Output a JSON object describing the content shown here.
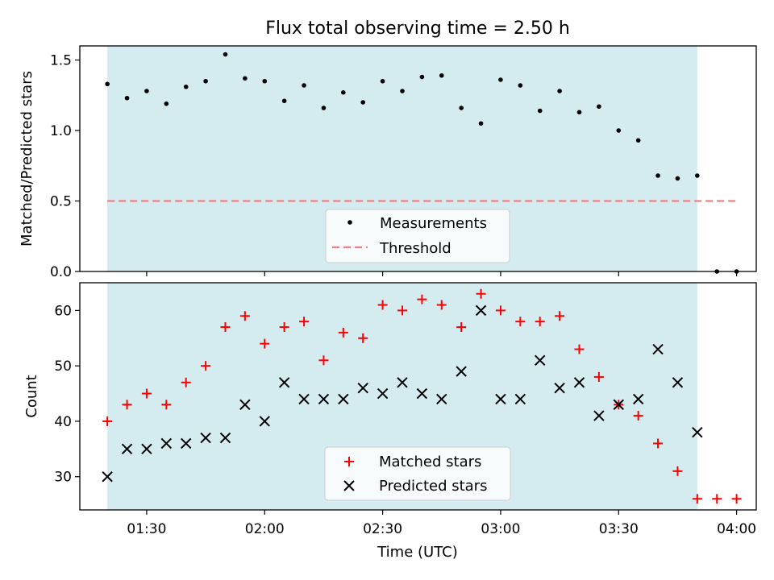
{
  "title": "Flux total observing time = 2.50 h",
  "chart_data": [
    {
      "type": "scatter",
      "ylabel": "Matched/Predicted stars",
      "xlabel": "",
      "ylim": [
        0,
        1.6
      ],
      "yticks": [
        0,
        0.5,
        1.0,
        1.5
      ],
      "ytick_labels": [
        "0.0",
        "0.5",
        "1.0",
        "1.5"
      ],
      "observing_window": [
        "01:20",
        "03:50"
      ],
      "shade_color": "#d4ebf0",
      "series": [
        {
          "name": "Measurements",
          "marker": "dot",
          "color": "#000000",
          "x": [
            "01:20",
            "01:25",
            "01:30",
            "01:35",
            "01:40",
            "01:45",
            "01:50",
            "01:55",
            "02:00",
            "02:05",
            "02:10",
            "02:15",
            "02:20",
            "02:25",
            "02:30",
            "02:35",
            "02:40",
            "02:45",
            "02:50",
            "02:55",
            "03:00",
            "03:05",
            "03:10",
            "03:15",
            "03:20",
            "03:25",
            "03:30",
            "03:35",
            "03:40",
            "03:45",
            "03:50",
            "03:55",
            "04:00"
          ],
          "y": [
            1.33,
            1.23,
            1.28,
            1.19,
            1.31,
            1.35,
            1.54,
            1.37,
            1.35,
            1.21,
            1.32,
            1.16,
            1.27,
            1.2,
            1.35,
            1.28,
            1.38,
            1.39,
            1.16,
            1.05,
            1.36,
            1.32,
            1.14,
            1.28,
            1.13,
            1.17,
            1.0,
            0.93,
            0.68,
            0.66,
            0.68,
            0.0,
            0.0
          ]
        },
        {
          "name": "Threshold",
          "type": "hline",
          "style": "dashed",
          "color": "#f08080",
          "value": 0.5,
          "x_range": [
            "01:20",
            "04:00"
          ]
        }
      ],
      "legend": "lower-center"
    },
    {
      "type": "scatter",
      "ylabel": "Count",
      "xlabel": "Time (UTC)",
      "ylim": [
        24,
        65
      ],
      "yticks": [
        30,
        40,
        50,
        60
      ],
      "ytick_labels": [
        "30",
        "40",
        "50",
        "60"
      ],
      "xlim": [
        "01:13",
        "04:05"
      ],
      "xticks": [
        "01:30",
        "02:00",
        "02:30",
        "03:00",
        "03:30",
        "04:00"
      ],
      "observing_window": [
        "01:20",
        "03:50"
      ],
      "shade_color": "#d4ebf0",
      "series": [
        {
          "name": "Matched stars",
          "marker": "plus",
          "color": "#ff0000",
          "x": [
            "01:20",
            "01:25",
            "01:30",
            "01:35",
            "01:40",
            "01:45",
            "01:50",
            "01:55",
            "02:00",
            "02:05",
            "02:10",
            "02:15",
            "02:20",
            "02:25",
            "02:30",
            "02:35",
            "02:40",
            "02:45",
            "02:50",
            "02:55",
            "03:00",
            "03:05",
            "03:10",
            "03:15",
            "03:20",
            "03:25",
            "03:30",
            "03:35",
            "03:40",
            "03:45",
            "03:50",
            "03:55",
            "04:00"
          ],
          "y": [
            40,
            43,
            45,
            43,
            47,
            50,
            57,
            59,
            54,
            57,
            58,
            51,
            56,
            55,
            61,
            60,
            62,
            61,
            57,
            63,
            60,
            58,
            58,
            59,
            53,
            48,
            43,
            41,
            36,
            31,
            26,
            26,
            26
          ]
        },
        {
          "name": "Predicted stars",
          "marker": "x",
          "color": "#000000",
          "x": [
            "01:20",
            "01:25",
            "01:30",
            "01:35",
            "01:40",
            "01:45",
            "01:50",
            "01:55",
            "02:00",
            "02:05",
            "02:10",
            "02:15",
            "02:20",
            "02:25",
            "02:30",
            "02:35",
            "02:40",
            "02:45",
            "02:50",
            "02:55",
            "03:00",
            "03:05",
            "03:10",
            "03:15",
            "03:20",
            "03:25",
            "03:30",
            "03:35",
            "03:40",
            "03:45",
            "03:50"
          ],
          "y": [
            30,
            35,
            35,
            36,
            36,
            37,
            37,
            43,
            40,
            47,
            44,
            44,
            44,
            46,
            45,
            47,
            45,
            44,
            49,
            60,
            44,
            44,
            51,
            46,
            47,
            41,
            43,
            44,
            53,
            47,
            38
          ]
        }
      ],
      "legend": "lower-center"
    }
  ]
}
